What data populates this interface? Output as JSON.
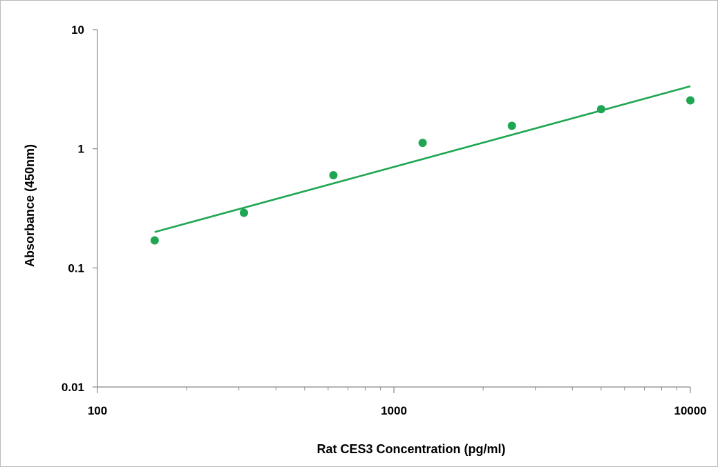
{
  "chart_data": {
    "type": "scatter",
    "title": "",
    "xlabel": "Rat CES3 Concentration (pg/ml)",
    "ylabel": "Absorbance (450nm)",
    "x_scale": "log",
    "y_scale": "log",
    "xlim": [
      100,
      10000
    ],
    "ylim": [
      0.01,
      10
    ],
    "x_ticks": [
      100,
      1000,
      10000
    ],
    "x_tick_labels": [
      "100",
      "1000",
      "10000"
    ],
    "y_ticks": [
      0.01,
      0.1,
      1,
      10
    ],
    "y_tick_labels": [
      "0.01",
      "0.1",
      "1",
      "10"
    ],
    "grid": false,
    "legend": "none",
    "color": "#1fa653",
    "series": [
      {
        "points": [
          {
            "x": 156,
            "y": 0.17
          },
          {
            "x": 312,
            "y": 0.29
          },
          {
            "x": 625,
            "y": 0.6
          },
          {
            "x": 1250,
            "y": 1.12
          },
          {
            "x": 2500,
            "y": 1.56
          },
          {
            "x": 5000,
            "y": 2.15
          },
          {
            "x": 10000,
            "y": 2.55
          }
        ]
      }
    ],
    "trendline": {
      "type": "power",
      "points": [
        {
          "x": 156,
          "y": 0.2
        },
        {
          "x": 10000,
          "y": 3.35
        }
      ]
    }
  }
}
